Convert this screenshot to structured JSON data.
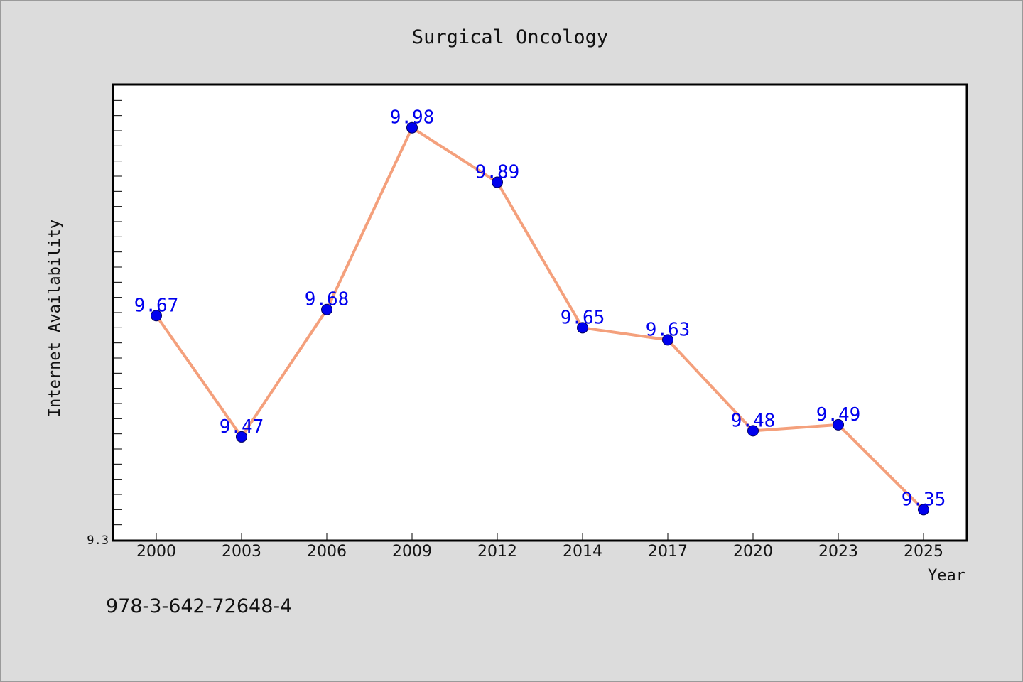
{
  "chart_data": {
    "type": "line",
    "title": "Surgical Oncology",
    "xlabel": "Year",
    "ylabel": "Internet Availability",
    "categories": [
      "2000",
      "2003",
      "2006",
      "2009",
      "2012",
      "2014",
      "2017",
      "2020",
      "2023",
      "2025"
    ],
    "series": [
      {
        "values": [
          9.67,
          9.47,
          9.68,
          9.98,
          9.89,
          9.65,
          9.63,
          9.48,
          9.49,
          9.35
        ]
      }
    ],
    "data_labels": [
      "9.67",
      "9.47",
      "9.68",
      "9.98",
      "9.89",
      "9.65",
      "9.63",
      "9.48",
      "9.49",
      "9.35"
    ],
    "ylim": [
      9.3,
      10.05
    ],
    "y_tick_label": "9.3",
    "grid": false,
    "legend": "none"
  },
  "footnote": "978-3-642-72648-4",
  "colors": {
    "background": "#dcdcdc",
    "plot_background": "#ffffff",
    "line": "#f4a07c",
    "marker": "#0000ee",
    "data_label": "#0000ee"
  }
}
